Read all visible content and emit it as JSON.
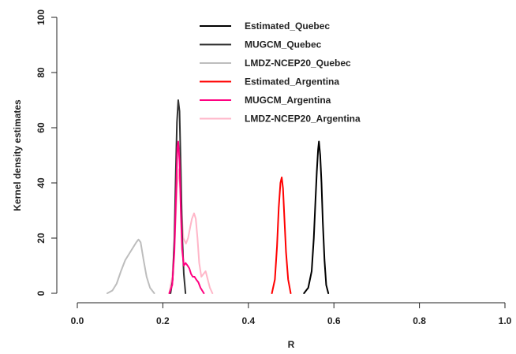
{
  "chart_data": {
    "type": "line",
    "title": "",
    "xlabel": "R",
    "ylabel": "Kernel density estimates",
    "xlim": [
      0.0,
      1.0
    ],
    "ylim": [
      0,
      100
    ],
    "x_ticks": [
      "0.0",
      "0.2",
      "0.4",
      "0.6",
      "0.8",
      "1.0"
    ],
    "y_ticks": [
      "0",
      "20",
      "40",
      "60",
      "80",
      "100"
    ],
    "grid": false,
    "legend_position": "top-center",
    "series": [
      {
        "name": "Estimated_Quebec",
        "color": "#000000",
        "points": [
          [
            0.53,
            0
          ],
          [
            0.54,
            2
          ],
          [
            0.548,
            8
          ],
          [
            0.553,
            20
          ],
          [
            0.557,
            34
          ],
          [
            0.56,
            44
          ],
          [
            0.563,
            52
          ],
          [
            0.565,
            55
          ],
          [
            0.568,
            50
          ],
          [
            0.571,
            40
          ],
          [
            0.574,
            26
          ],
          [
            0.578,
            12
          ],
          [
            0.582,
            3
          ],
          [
            0.587,
            0
          ]
        ]
      },
      {
        "name": "MUGCM_Quebec",
        "color": "#333333",
        "points": [
          [
            0.218,
            0
          ],
          [
            0.223,
            5
          ],
          [
            0.227,
            20
          ],
          [
            0.23,
            42
          ],
          [
            0.233,
            62
          ],
          [
            0.236,
            70
          ],
          [
            0.239,
            66
          ],
          [
            0.242,
            45
          ],
          [
            0.245,
            22
          ],
          [
            0.249,
            7
          ],
          [
            0.253,
            0
          ]
        ]
      },
      {
        "name": "LMDZ-NCEP20_Quebec",
        "color": "#bdbdbd",
        "points": [
          [
            0.07,
            0
          ],
          [
            0.082,
            1
          ],
          [
            0.092,
            3.5
          ],
          [
            0.102,
            8
          ],
          [
            0.112,
            12
          ],
          [
            0.122,
            14.5
          ],
          [
            0.13,
            16.5
          ],
          [
            0.138,
            18.5
          ],
          [
            0.143,
            19.5
          ],
          [
            0.148,
            18.5
          ],
          [
            0.155,
            12
          ],
          [
            0.162,
            6
          ],
          [
            0.17,
            2
          ],
          [
            0.18,
            0
          ]
        ]
      },
      {
        "name": "Estimated_Argentina",
        "color": "#ff0000",
        "points": [
          [
            0.455,
            0
          ],
          [
            0.462,
            5
          ],
          [
            0.467,
            17
          ],
          [
            0.471,
            31
          ],
          [
            0.475,
            40
          ],
          [
            0.478,
            42
          ],
          [
            0.481,
            38
          ],
          [
            0.484,
            28
          ],
          [
            0.488,
            15
          ],
          [
            0.493,
            5
          ],
          [
            0.499,
            0
          ]
        ]
      },
      {
        "name": "MUGCM_Argentina",
        "color": "#ff0080",
        "points": [
          [
            0.215,
            0
          ],
          [
            0.222,
            3
          ],
          [
            0.227,
            15
          ],
          [
            0.231,
            36
          ],
          [
            0.234,
            53
          ],
          [
            0.236,
            55
          ],
          [
            0.239,
            48
          ],
          [
            0.242,
            30
          ],
          [
            0.245,
            16
          ],
          [
            0.249,
            10
          ],
          [
            0.253,
            11
          ],
          [
            0.258,
            10
          ],
          [
            0.262,
            9
          ],
          [
            0.266,
            7
          ],
          [
            0.27,
            6
          ],
          [
            0.274,
            6
          ],
          [
            0.278,
            5
          ],
          [
            0.283,
            4
          ],
          [
            0.288,
            2
          ],
          [
            0.296,
            0
          ]
        ]
      },
      {
        "name": "LMDZ-NCEP20_Argentina",
        "color": "#ffb6c8",
        "points": [
          [
            0.215,
            0
          ],
          [
            0.222,
            6
          ],
          [
            0.228,
            20
          ],
          [
            0.233,
            38
          ],
          [
            0.238,
            45
          ],
          [
            0.243,
            32
          ],
          [
            0.248,
            20
          ],
          [
            0.254,
            18
          ],
          [
            0.259,
            20
          ],
          [
            0.264,
            24
          ],
          [
            0.268,
            27
          ],
          [
            0.273,
            29
          ],
          [
            0.277,
            27
          ],
          [
            0.281,
            20
          ],
          [
            0.285,
            11
          ],
          [
            0.29,
            6
          ],
          [
            0.295,
            7
          ],
          [
            0.3,
            8
          ],
          [
            0.305,
            5
          ],
          [
            0.31,
            2
          ],
          [
            0.316,
            0
          ]
        ]
      }
    ]
  }
}
